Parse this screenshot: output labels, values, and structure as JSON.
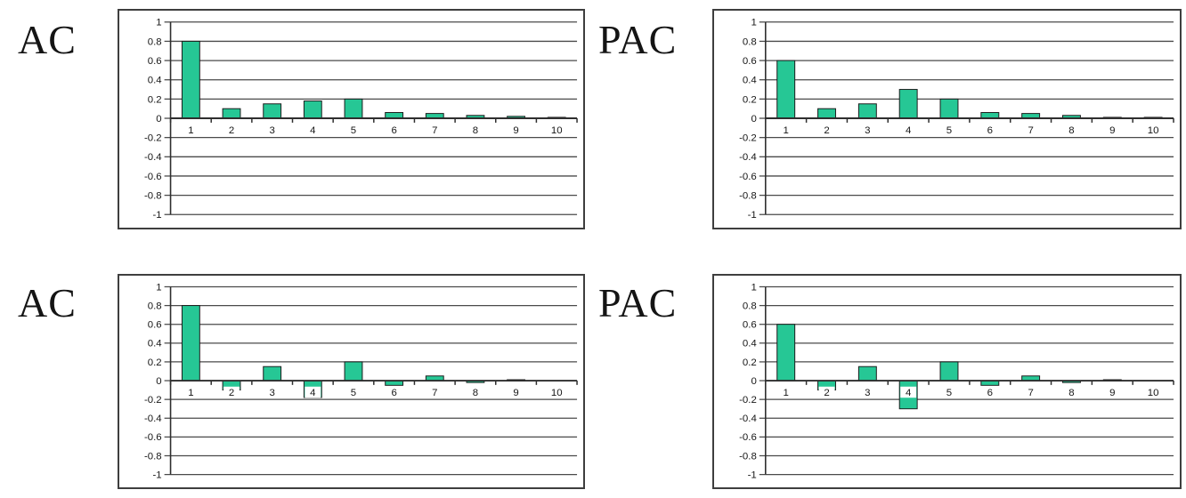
{
  "style": {
    "bar_fill": "#26c795",
    "bar_stroke": "#1b1b1b",
    "grid_color": "#4a4a4a",
    "axis_color": "#2e2e2e",
    "frame_color": "#3e3e3e",
    "label_color": "#161616",
    "background": "#ffffff"
  },
  "chart_data": [
    {
      "panel": "top-left",
      "type": "bar",
      "title": "AC",
      "categories": [
        "1",
        "2",
        "3",
        "4",
        "5",
        "6",
        "7",
        "8",
        "9",
        "10"
      ],
      "values": [
        0.8,
        0.1,
        0.15,
        0.18,
        0.2,
        0.06,
        0.05,
        0.03,
        0.02,
        0.01
      ],
      "ylim": [
        -1,
        1
      ],
      "ytick_labels": [
        "1",
        "0.8",
        "0.6",
        "0.4",
        "0.2",
        "0",
        "-0.2",
        "-0.4",
        "-0.6",
        "-0.8",
        "-1"
      ],
      "grid": true,
      "legend": false
    },
    {
      "panel": "top-right",
      "type": "bar",
      "title": "PAC",
      "categories": [
        "1",
        "2",
        "3",
        "4",
        "5",
        "6",
        "7",
        "8",
        "9",
        "10"
      ],
      "values": [
        0.6,
        0.1,
        0.15,
        0.3,
        0.2,
        0.06,
        0.05,
        0.03,
        0.01,
        0.01
      ],
      "ylim": [
        -1,
        1
      ],
      "ytick_labels": [
        "1",
        "0.8",
        "0.6",
        "0.4",
        "0.2",
        "0",
        "-0.2",
        "-0.4",
        "-0.6",
        "-0.8",
        "-1"
      ],
      "grid": true,
      "legend": false
    },
    {
      "panel": "bottom-left",
      "type": "bar",
      "title": "AC",
      "categories": [
        "1",
        "2",
        "3",
        "4",
        "5",
        "6",
        "7",
        "8",
        "9",
        "10"
      ],
      "values": [
        0.8,
        -0.1,
        0.15,
        -0.18,
        0.2,
        -0.05,
        0.05,
        -0.02,
        0.01,
        0
      ],
      "ylim": [
        -1,
        1
      ],
      "ytick_labels": [
        "1",
        "0.8",
        "0.6",
        "0.4",
        "0.2",
        "0",
        "-0.2",
        "-0.4",
        "-0.6",
        "-0.8",
        "-1"
      ],
      "grid": true,
      "legend": false
    },
    {
      "panel": "bottom-right",
      "type": "bar",
      "title": "PAC",
      "categories": [
        "1",
        "2",
        "3",
        "4",
        "5",
        "6",
        "7",
        "8",
        "9",
        "10"
      ],
      "values": [
        0.6,
        -0.1,
        0.15,
        -0.3,
        0.2,
        -0.05,
        0.05,
        -0.02,
        0.01,
        0
      ],
      "ylim": [
        -1,
        1
      ],
      "ytick_labels": [
        "1",
        "0.8",
        "0.6",
        "0.4",
        "0.2",
        "0",
        "-0.2",
        "-0.4",
        "-0.6",
        "-0.8",
        "-1"
      ],
      "grid": true,
      "legend": false
    }
  ]
}
